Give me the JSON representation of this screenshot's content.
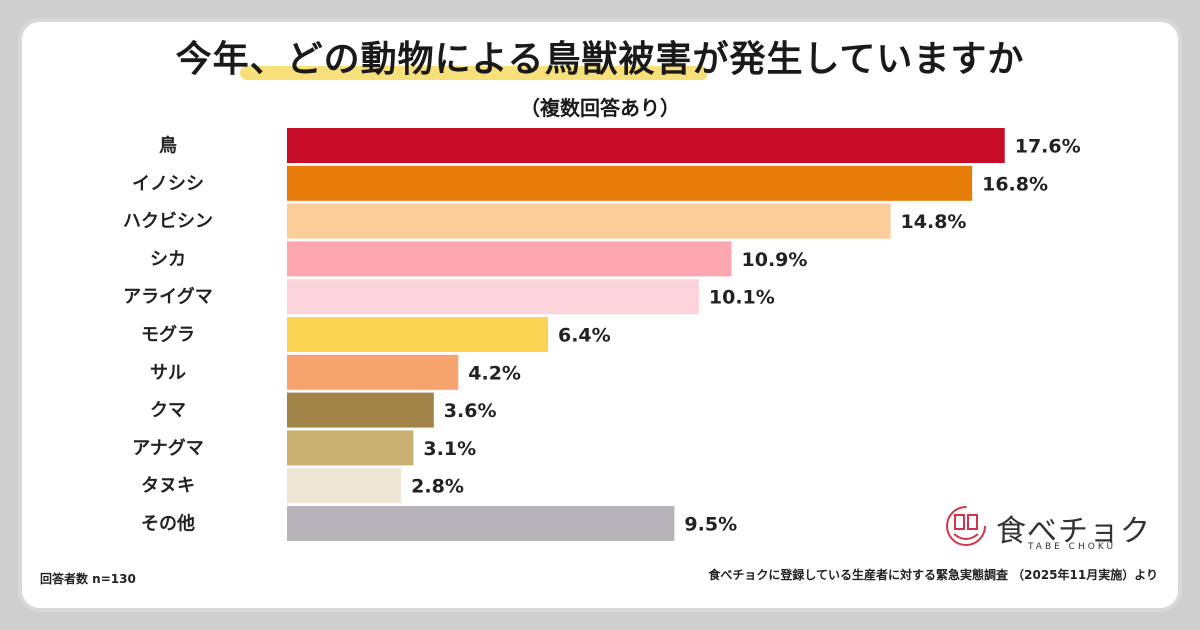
{
  "chart_data": {
    "type": "bar",
    "orientation": "horizontal",
    "title": "今年、どの動物による鳥獣被害が発生していますか",
    "subtitle": "（複数回答あり）",
    "categories": [
      "鳥",
      "イノシシ",
      "ハクビシン",
      "シカ",
      "アライグマ",
      "モグラ",
      "サル",
      "クマ",
      "アナグマ",
      "タヌキ",
      "その他"
    ],
    "values": [
      17.6,
      16.8,
      14.8,
      10.9,
      10.1,
      6.4,
      4.2,
      3.6,
      3.1,
      2.8,
      9.5
    ],
    "value_labels": [
      "17.6%",
      "16.8%",
      "14.8%",
      "10.9%",
      "10.1%",
      "6.4%",
      "4.2%",
      "3.6%",
      "3.1%",
      "2.8%",
      "9.5%"
    ],
    "colors": [
      "#c60c28",
      "#e77d08",
      "#fccd98",
      "#fca7b0",
      "#fdd3dc",
      "#fad352",
      "#f8a46e",
      "#a38448",
      "#c8b170",
      "#efe6d6",
      "#b6b4b8"
    ],
    "xlabel": "",
    "ylabel": "",
    "xlim": [
      0,
      18
    ],
    "grid": false,
    "legend": "none"
  },
  "footnote": {
    "sample": "回答者数 n=130",
    "source": "食べチョクに登録している生産者に対する緊急実態調査 （2025年11月実施）より"
  },
  "logo": {
    "name": "食べチョク",
    "sub": "TABE CHOKU",
    "accent": "#d4344a"
  },
  "colors": {
    "title_highlight": "#f7e07a",
    "background": "#ffffff",
    "frame": "#d9d9d9"
  }
}
